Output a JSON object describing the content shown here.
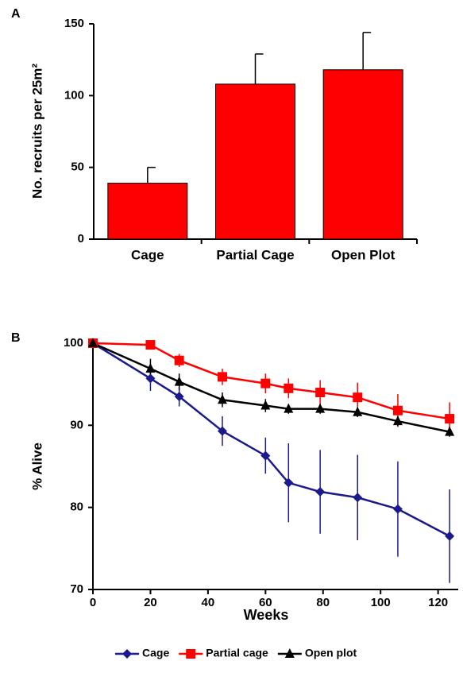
{
  "chart_data": [
    {
      "type": "bar",
      "panel": "A",
      "ylabel": "No. recruits per 25m²",
      "categories": [
        "Cage",
        "Partial Cage",
        "Open Plot"
      ],
      "values": [
        39,
        108,
        118
      ],
      "errors": [
        11,
        21,
        26
      ],
      "color": "#ff0000",
      "ylim": [
        0,
        150
      ],
      "yticks": [
        0,
        50,
        100,
        150
      ]
    },
    {
      "type": "line",
      "panel": "B",
      "xlabel": "Weeks",
      "ylabel": "% Alive",
      "x": [
        0,
        20,
        30,
        45,
        60,
        68,
        79,
        92,
        106,
        124
      ],
      "series": [
        {
          "name": "Cage",
          "color": "#1a1a8c",
          "marker": "diamond",
          "values": [
            100,
            95.7,
            93.5,
            89.3,
            86.3,
            83.0,
            81.9,
            81.2,
            79.8,
            76.5
          ],
          "errors": [
            0,
            1.5,
            1.2,
            1.8,
            2.2,
            4.8,
            5.1,
            5.2,
            5.8,
            5.7
          ]
        },
        {
          "name": "Partial cage",
          "color": "#ff0000",
          "marker": "square",
          "values": [
            100,
            99.8,
            97.9,
            95.9,
            95.1,
            94.5,
            94.0,
            93.4,
            91.8,
            90.8
          ],
          "errors": [
            0,
            0.3,
            0.8,
            1.0,
            1.2,
            1.2,
            1.5,
            1.8,
            2.0,
            2.0
          ]
        },
        {
          "name": "Open plot",
          "color": "#000000",
          "marker": "triangle",
          "values": [
            100,
            96.9,
            95.3,
            93.1,
            92.4,
            92.0,
            92.0,
            91.6,
            90.5,
            89.2
          ],
          "errors": [
            0,
            1.2,
            1.0,
            0.9,
            0.8,
            0.6,
            0.6,
            0.6,
            0.6,
            0.6
          ]
        }
      ],
      "xlim": [
        0,
        127
      ],
      "xticks": [
        0,
        20,
        40,
        60,
        80,
        100,
        120
      ],
      "ylim": [
        70,
        100
      ],
      "yticks": [
        70,
        80,
        90,
        100
      ],
      "legend": "bottom"
    }
  ]
}
